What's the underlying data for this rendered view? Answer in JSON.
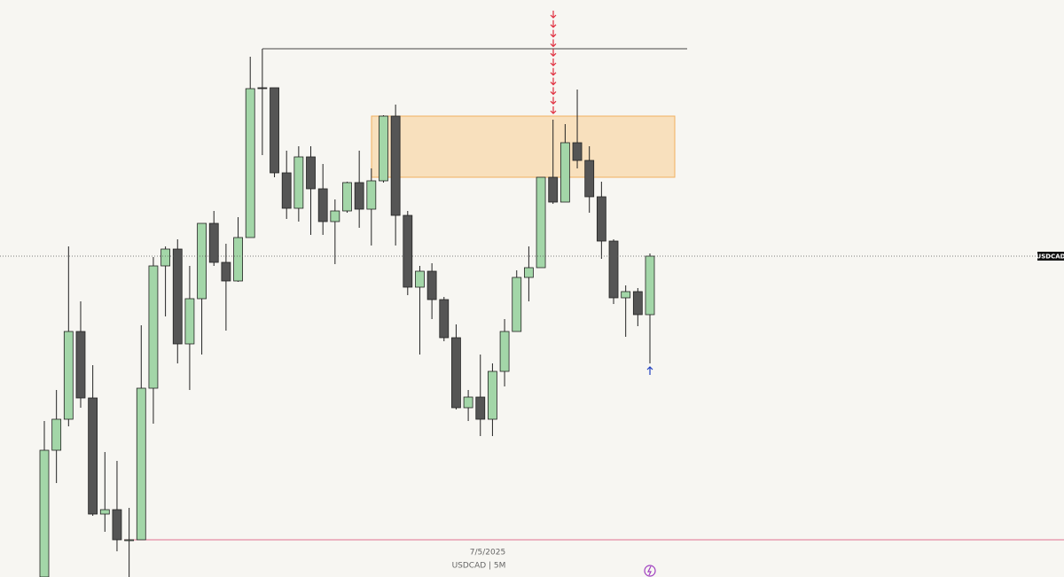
{
  "chart_data": {
    "type": "candlestick",
    "symbol_label": "USDCAD",
    "date_label": "7/5/2025",
    "caption": "USDCAD | 5M",
    "ylim": [
      0,
      651
    ],
    "up_color": "#a3d6a8",
    "down_color": "#555555",
    "open": [
      0,
      143,
      178,
      277,
      202,
      71,
      76,
      42,
      42,
      213,
      351,
      370,
      263,
      314,
      399,
      355,
      334,
      383,
      552,
      552,
      456,
      416,
      474,
      438,
      401,
      413,
      445,
      415,
      447,
      520,
      408,
      327,
      345,
      313,
      270,
      191,
      203,
      178,
      232,
      277,
      338,
      349,
      451,
      423,
      490,
      470,
      429,
      379,
      315,
      322,
      296
    ],
    "high": [
      176,
      211,
      373,
      311,
      239,
      141,
      131,
      78,
      284,
      361,
      373,
      381,
      351,
      399,
      413,
      376,
      406,
      587,
      596,
      552,
      481,
      486,
      486,
      466,
      426,
      446,
      481,
      461,
      521,
      533,
      413,
      351,
      354,
      316,
      285,
      211,
      251,
      241,
      291,
      346,
      373,
      451,
      516,
      511,
      550,
      486,
      446,
      381,
      329,
      326,
      365
    ],
    "low": [
      0,
      106,
      170,
      191,
      69,
      51,
      29,
      0,
      42,
      173,
      294,
      241,
      211,
      251,
      351,
      278,
      333,
      383,
      476,
      451,
      404,
      401,
      386,
      386,
      353,
      411,
      394,
      374,
      445,
      374,
      318,
      251,
      291,
      266,
      189,
      176,
      159,
      159,
      215,
      277,
      311,
      349,
      421,
      423,
      461,
      411,
      359,
      308,
      271,
      283,
      241
    ],
    "close": [
      143,
      178,
      277,
      202,
      71,
      76,
      42,
      42,
      213,
      351,
      370,
      263,
      314,
      399,
      355,
      334,
      383,
      551,
      551,
      456,
      416,
      474,
      438,
      401,
      413,
      445,
      415,
      447,
      520,
      408,
      327,
      345,
      313,
      270,
      191,
      203,
      178,
      232,
      277,
      338,
      349,
      451,
      423,
      490,
      470,
      429,
      379,
      315,
      322,
      296,
      362
    ],
    "zone": {
      "low": 451,
      "high": 520,
      "color": "#f8e0bd"
    },
    "levels": [
      {
        "value": 596,
        "color": "#444444"
      },
      {
        "value": 42,
        "color": "#e07090"
      }
    ]
  }
}
